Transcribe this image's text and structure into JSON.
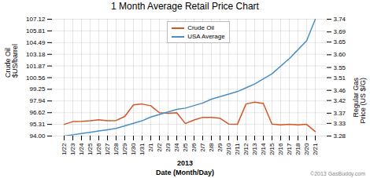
{
  "chart_data": {
    "type": "line",
    "title": "1 Month Average Retail Price Chart",
    "xlabel": "Date (Month/Day)",
    "ylabel": "Crude Oil\n$US/barrel",
    "y2label": "Regular Gas\nPrice (US $/G)",
    "annotations": [
      "2013",
      "©2013 GasBuddy.com"
    ],
    "categories": [
      "1/22",
      "1/23",
      "1/24",
      "1/25",
      "1/26",
      "1/27",
      "1/28",
      "1/29",
      "1/30",
      "1/31",
      "2/1",
      "2/2",
      "2/3",
      "2/4",
      "2/5",
      "2/6",
      "2/7",
      "2/8",
      "2/9",
      "2/10",
      "2/11",
      "2/12",
      "2/13",
      "2/14",
      "2/15",
      "2/16",
      "2/17",
      "2/18",
      "2/20",
      "2/21"
    ],
    "series": [
      {
        "name": "Crude Oil",
        "color": "#d45527",
        "values": [
          95.31,
          95.62,
          95.65,
          95.72,
          95.82,
          95.72,
          95.75,
          96.2,
          97.5,
          97.6,
          97.4,
          96.62,
          96.55,
          96.62,
          95.4,
          95.8,
          96.1,
          96.1,
          96.0,
          95.35,
          95.31,
          97.6,
          97.8,
          97.65,
          95.35,
          95.25,
          95.31,
          95.25,
          95.31,
          94.5
        ]
      },
      {
        "name": "USA Average",
        "color": "#4a8fc4",
        "axis": "y2",
        "values": [
          3.28,
          3.285,
          3.29,
          3.295,
          3.3,
          3.305,
          3.31,
          3.32,
          3.33,
          3.34,
          3.355,
          3.365,
          3.375,
          3.385,
          3.39,
          3.4,
          3.41,
          3.425,
          3.435,
          3.445,
          3.455,
          3.47,
          3.485,
          3.505,
          3.525,
          3.555,
          3.585,
          3.62,
          3.655,
          3.74
        ]
      }
    ],
    "ylim": [
      94.0,
      107.12
    ],
    "yticks": [
      {
        "value": 94.0,
        "label": "94.00"
      },
      95.31,
      96.62,
      97.94,
      99.25,
      100.56,
      101.87,
      103.18,
      104.49,
      105.81,
      107.12
    ],
    "y2lim": [
      3.28,
      3.74
    ],
    "y2ticks": [
      3.28,
      3.33,
      3.37,
      3.42,
      3.46,
      3.51,
      3.55,
      {
        "value": 3.6,
        "label": "3.60"
      },
      3.65,
      3.69,
      3.74
    ],
    "grid": true,
    "legend": "upper center"
  }
}
